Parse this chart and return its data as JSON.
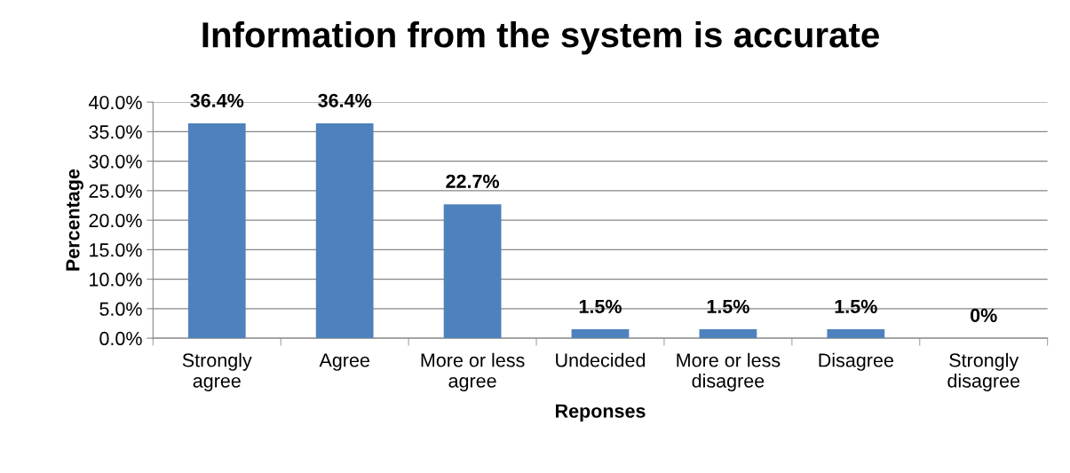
{
  "chart_data": {
    "type": "bar",
    "title": "Information from the system is accurate",
    "xlabel": "Reponses",
    "ylabel": "Percentage",
    "categories": [
      "Strongly agree",
      "Agree",
      "More or less agree",
      "Undecided",
      "More or less disagree",
      "Disagree",
      "Strongly disagree"
    ],
    "values": [
      36.4,
      36.4,
      22.7,
      1.5,
      1.5,
      1.5,
      0
    ],
    "value_labels": [
      "36.4%",
      "36.4%",
      "22.7%",
      "1.5%",
      "1.5%",
      "1.5%",
      "0%"
    ],
    "color": "#4f81bd",
    "ylim": [
      0,
      40
    ],
    "yticks": [
      {
        "value": 0,
        "label": "0.0%"
      },
      {
        "value": 5,
        "label": "5.0%"
      },
      {
        "value": 10,
        "label": "10.0%"
      },
      {
        "value": 15,
        "label": "15.0%"
      },
      {
        "value": 20,
        "label": "20.0%"
      },
      {
        "value": 25,
        "label": "25.0%"
      },
      {
        "value": 30,
        "label": "30.0%"
      },
      {
        "value": 35,
        "label": "35.0%"
      },
      {
        "value": 40,
        "label": "40.0%"
      }
    ],
    "grid": "y",
    "legend": false
  }
}
